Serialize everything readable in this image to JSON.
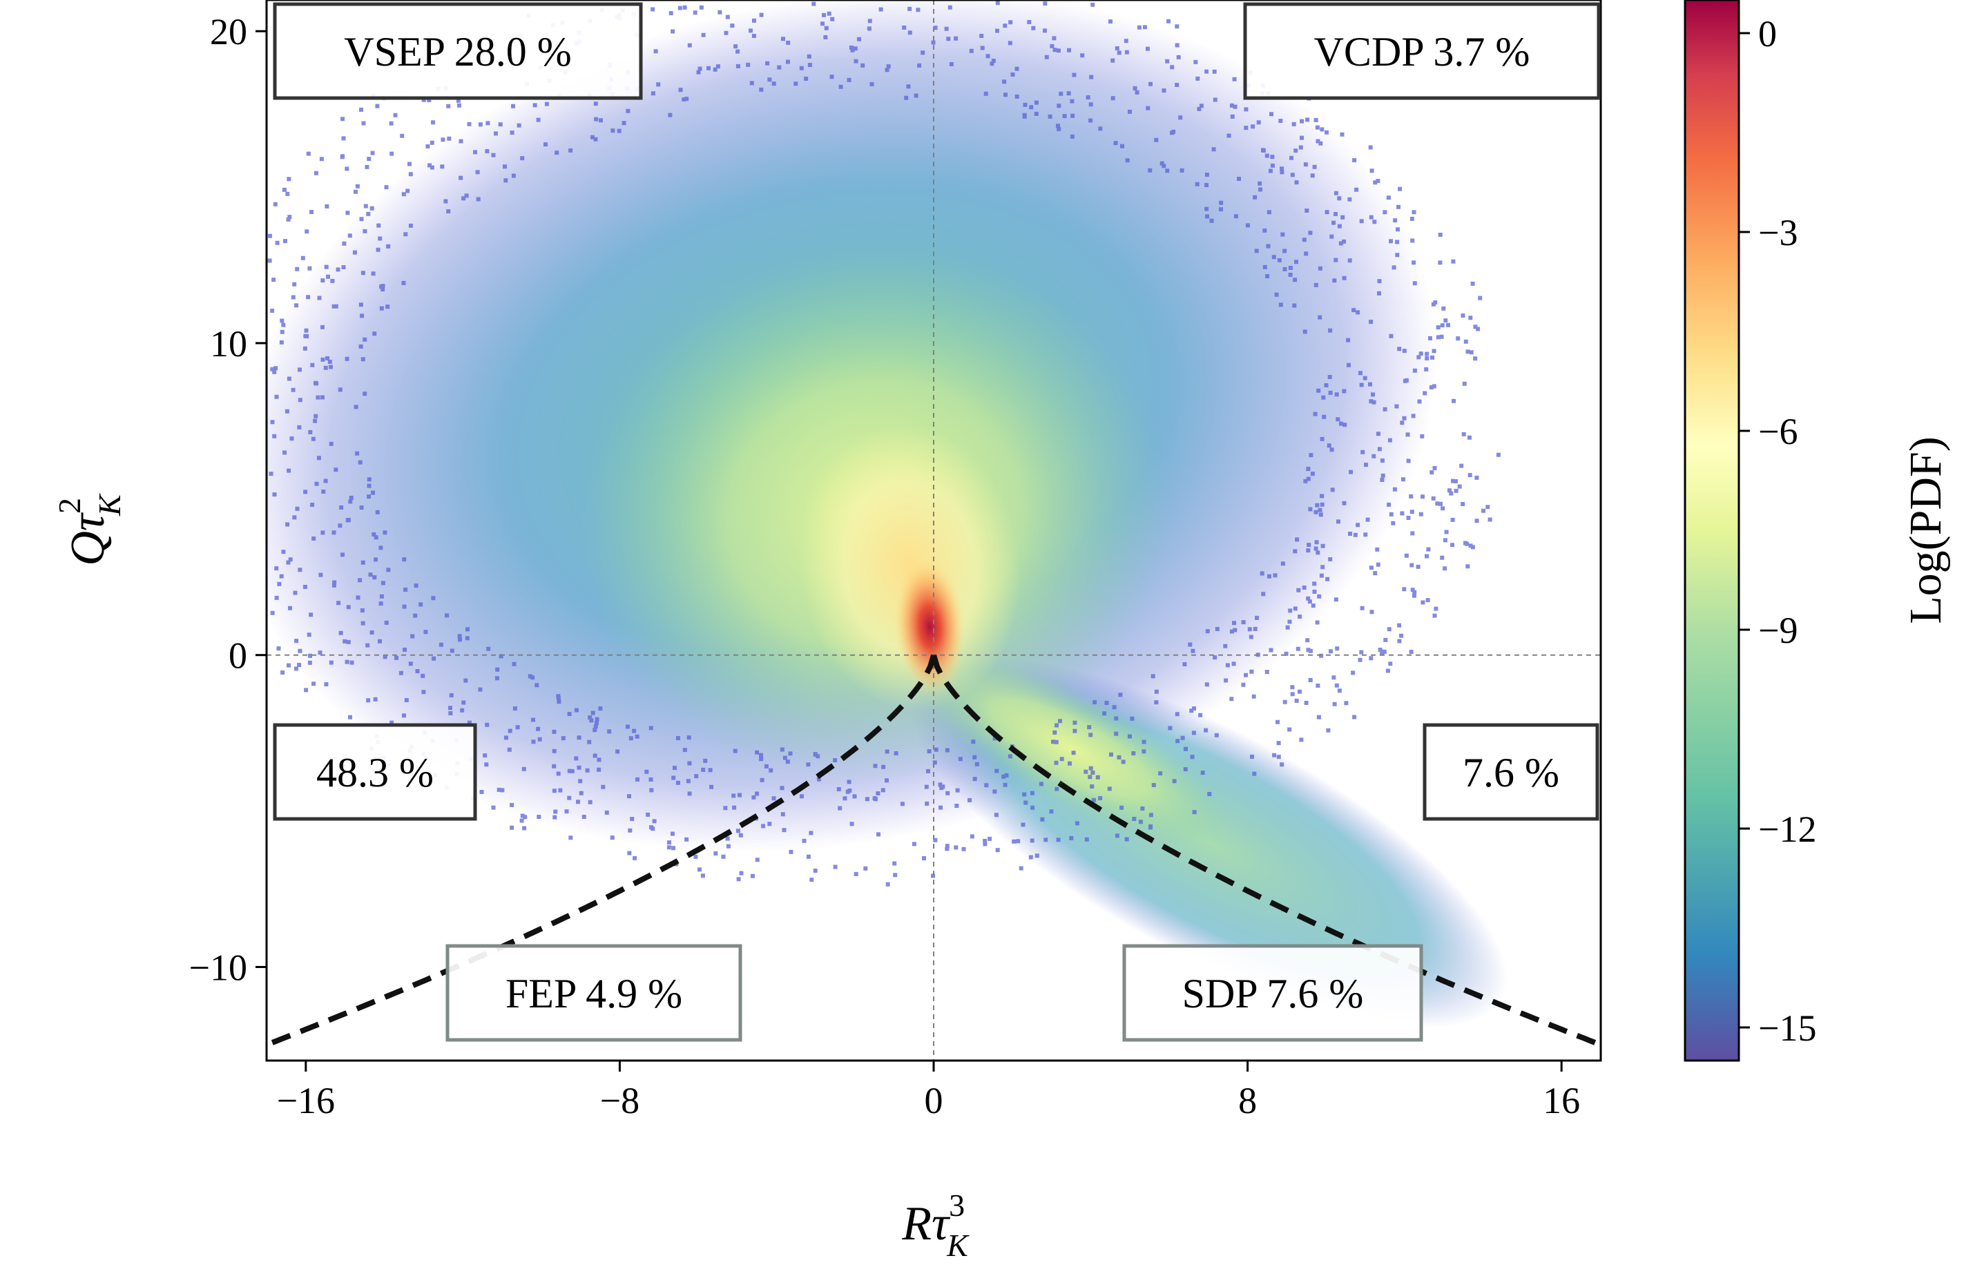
{
  "chart_data": {
    "type": "heatmap",
    "xlabel": "Rτ",
    "xlabel_sup": "3",
    "xlabel_sub": "K",
    "ylabel": "Qτ",
    "ylabel_sup": "2",
    "ylabel_sub": "K",
    "xlim": [
      -17,
      17
    ],
    "ylim": [
      -13,
      21
    ],
    "x_ticks": [
      -16,
      -8,
      0,
      8,
      16
    ],
    "y_ticks": [
      -10,
      0,
      10,
      20
    ],
    "x_tick_labels": [
      "−16",
      "−8",
      "0",
      "8",
      "16"
    ],
    "y_tick_labels": [
      "−10",
      "0",
      "10",
      "20"
    ],
    "reference_lines": {
      "x": 0,
      "y": 0,
      "style": "dashed",
      "color": "#808080"
    },
    "boundary_curve": {
      "equation": "27 R^2 + 4 Q^3 = 0",
      "style": "dashed",
      "color": "#000000"
    },
    "colorbar": {
      "label": "Log(PDF)",
      "range": [
        -15.5,
        0.5
      ],
      "ticks": [
        0,
        -3,
        -6,
        -9,
        -12,
        -15
      ],
      "tick_labels": [
        "0",
        "−3",
        "−6",
        "−9",
        "−12",
        "−15"
      ],
      "colormap": "Spectral_r",
      "colormap_stops": [
        "#5e4fa2",
        "#3288bd",
        "#66c2a5",
        "#abdda4",
        "#e6f598",
        "#ffffbf",
        "#fee08b",
        "#fdae61",
        "#f46d43",
        "#d53e4f",
        "#9e0142"
      ]
    },
    "region_labels": [
      {
        "region": "top-left",
        "text": "VSEP 28.0 %",
        "border_color": "#333333"
      },
      {
        "region": "top-right",
        "text": "VCDP 3.7 %",
        "border_color": "#333333"
      },
      {
        "region": "left",
        "text": "48.3 %",
        "border_color": "#333333"
      },
      {
        "region": "right",
        "text": "7.6 %",
        "border_color": "#333333"
      },
      {
        "region": "bottom-left",
        "text": "FEP 4.9 %",
        "border_color": "#808a87"
      },
      {
        "region": "bottom-right",
        "text": "SDP 7.6 %",
        "border_color": "#808a87"
      }
    ]
  }
}
